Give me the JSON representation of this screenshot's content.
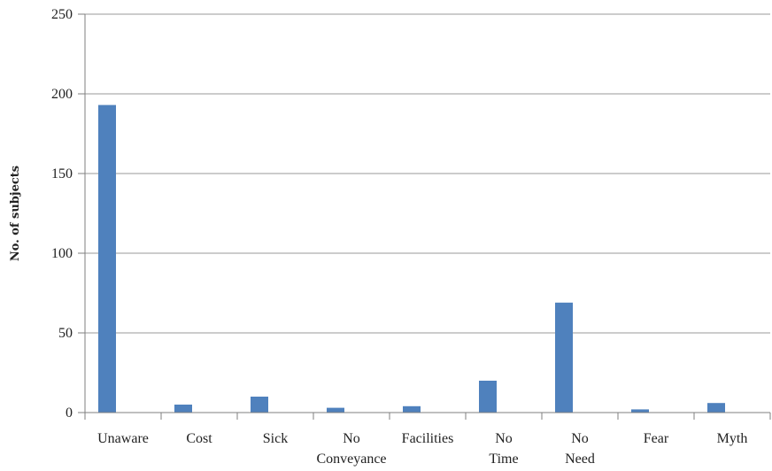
{
  "chart_data": {
    "type": "bar",
    "title": "",
    "xlabel": "",
    "ylabel": "No. of subjects",
    "ylim": [
      0,
      250
    ],
    "yticks": [
      0,
      50,
      100,
      150,
      200,
      250
    ],
    "grid": true,
    "color": "#4f81bd",
    "categories": [
      {
        "lines": [
          "Unaware"
        ]
      },
      {
        "lines": [
          "Cost"
        ]
      },
      {
        "lines": [
          "Sick"
        ]
      },
      {
        "lines": [
          "No",
          "Conveyance"
        ]
      },
      {
        "lines": [
          "Facilities"
        ]
      },
      {
        "lines": [
          "No",
          "Time"
        ]
      },
      {
        "lines": [
          "No",
          "Need"
        ]
      },
      {
        "lines": [
          "Fear"
        ]
      },
      {
        "lines": [
          "Myth"
        ]
      }
    ],
    "values": [
      193,
      5,
      10,
      3,
      4,
      20,
      69,
      2,
      6
    ]
  }
}
